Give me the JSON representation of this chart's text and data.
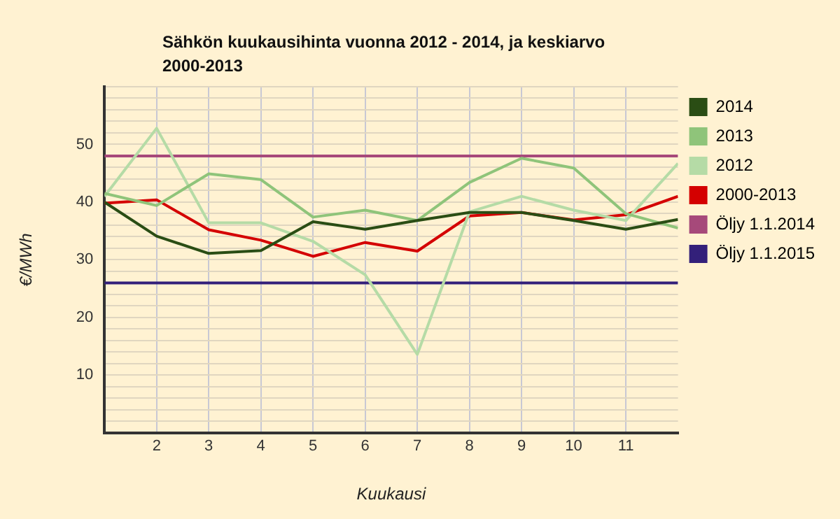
{
  "chart_data": {
    "type": "line",
    "title": "Sähkön kuukausihinta vuonna 2012 - 2014, ja keskiarvo 2000-2013",
    "xlabel": "Kuukausi",
    "ylabel": "€/MWh",
    "x": [
      1,
      2,
      3,
      4,
      5,
      6,
      7,
      8,
      9,
      10,
      11,
      12
    ],
    "series": [
      {
        "name": "2014",
        "color": "#2a4d14",
        "values": [
          40,
          34.1,
          31.1,
          31.6,
          36.6,
          35.3,
          36.8,
          38.2,
          38.2,
          36.8,
          35.3,
          37.0
        ]
      },
      {
        "name": "2013",
        "color": "#8fc47a",
        "values": [
          41.5,
          39.4,
          44.9,
          43.9,
          37.4,
          38.6,
          36.8,
          43.4,
          47.6,
          45.9,
          38.0,
          35.5
        ]
      },
      {
        "name": "2012",
        "color": "#b5dba6",
        "values": [
          41.0,
          52.8,
          36.4,
          36.4,
          33.2,
          27.4,
          13.6,
          38.3,
          41.0,
          38.6,
          36.8,
          46.7
        ]
      },
      {
        "name": "2000-2013",
        "color": "#d40000",
        "values": [
          39.8,
          40.4,
          35.2,
          33.4,
          30.6,
          33.0,
          31.5,
          37.6,
          38.2,
          36.9,
          37.8,
          41.0
        ]
      },
      {
        "name": "Öljy 1.1.2014",
        "color": "#a6497a",
        "values": [
          48,
          48,
          48,
          48,
          48,
          48,
          48,
          48,
          48,
          48,
          48,
          48
        ]
      },
      {
        "name": "Öljy 1.1.2015",
        "color": "#33207a",
        "values": [
          26,
          26,
          26,
          26,
          26,
          26,
          26,
          26,
          26,
          26,
          26,
          26
        ]
      }
    ],
    "xlim": [
      1,
      12
    ],
    "xticks": [
      2,
      3,
      4,
      5,
      6,
      7,
      8,
      9,
      10,
      11
    ],
    "ylim": [
      0,
      60
    ],
    "yticks": [
      {
        "value": 0,
        "label": null
      },
      {
        "value": 2,
        "label": null
      },
      {
        "value": 4,
        "label": null
      },
      {
        "value": 6,
        "label": null
      },
      {
        "value": 8,
        "label": null
      },
      10,
      {
        "value": 12,
        "label": null
      },
      {
        "value": 14,
        "label": null
      },
      {
        "value": 16,
        "label": null
      },
      {
        "value": 18,
        "label": null
      },
      20,
      {
        "value": 22,
        "label": null
      },
      {
        "value": 24,
        "label": null
      },
      {
        "value": 26,
        "label": null
      },
      {
        "value": 28,
        "label": null
      },
      30,
      {
        "value": 32,
        "label": null
      },
      {
        "value": 34,
        "label": null
      },
      {
        "value": 36,
        "label": null
      },
      {
        "value": 38,
        "label": null
      },
      40,
      {
        "value": 42,
        "label": null
      },
      {
        "value": 44,
        "label": null
      },
      {
        "value": 46,
        "label": null
      },
      {
        "value": 48,
        "label": null
      },
      50,
      {
        "value": 52,
        "label": null
      },
      {
        "value": 54,
        "label": null
      },
      {
        "value": 56,
        "label": null
      },
      {
        "value": 58,
        "label": null
      },
      {
        "value": 60,
        "label": null
      }
    ],
    "grid": true,
    "legend": "right",
    "marker": "none",
    "line_style": "solid"
  }
}
